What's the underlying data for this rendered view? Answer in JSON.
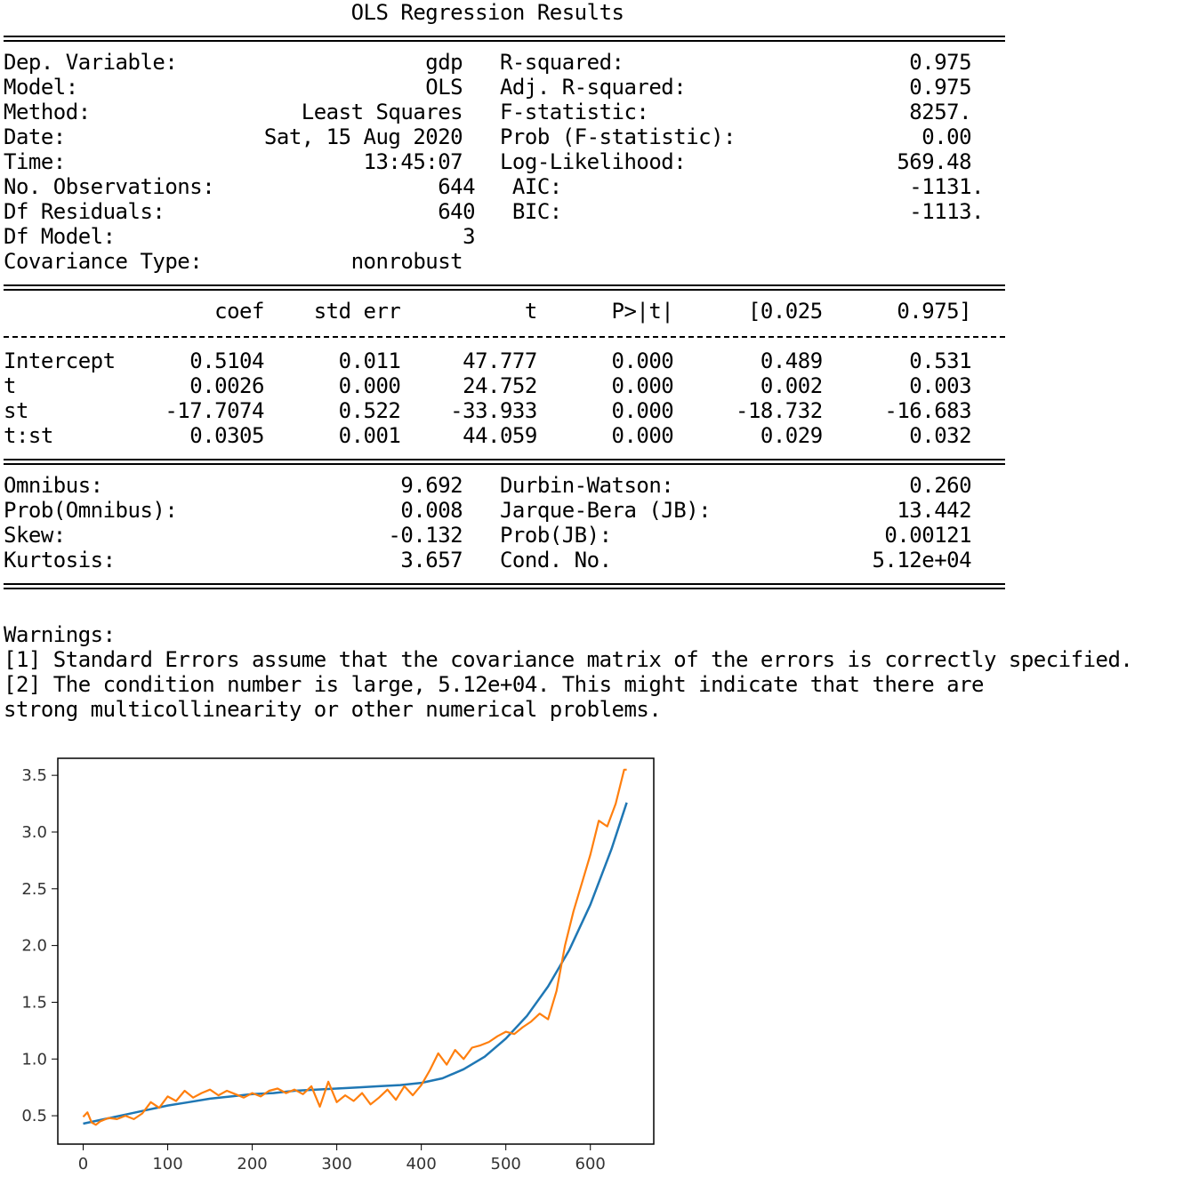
{
  "summary": {
    "title": "OLS Regression Results",
    "separator_eq": "==============================================================================",
    "separator_dash": "------------------------------------------------------------------------------",
    "header_rows": [
      "Dep. Variable:                    gdp   R-squared:                       0.975",
      "Model:                            OLS   Adj. R-squared:                  0.975",
      "Method:                 Least Squares   F-statistic:                     8257.",
      "Date:                Sat, 15 Aug 2020   Prob (F-statistic):               0.00",
      "Time:                        13:45:07   Log-Likelihood:                 569.48",
      "No. Observations:                  644   AIC:                            -1131.",
      "Df Residuals:                      640   BIC:                            -1113.",
      "Df Model:                            3                                         ",
      "Covariance Type:            nonrobust                                         "
    ],
    "coef_header": "                 coef    std err          t      P>|t|      [0.025      0.975]",
    "coef_rows": [
      "Intercept      0.5104      0.011     47.777      0.000       0.489       0.531",
      "t              0.0026      0.000     24.752      0.000       0.002       0.003",
      "st           -17.7074      0.522    -33.933      0.000     -18.732     -16.683",
      "t:st           0.0305      0.001     44.059      0.000       0.029       0.032"
    ],
    "diag_rows": [
      "Omnibus:                        9.692   Durbin-Watson:                   0.260",
      "Prob(Omnibus):                  0.008   Jarque-Bera (JB):               13.442",
      "Skew:                          -0.132   Prob(JB):                      0.00121",
      "Kurtosis:                       3.657   Cond. No.                     5.12e+04"
    ],
    "warnings_title": "Warnings:",
    "warnings": [
      "[1] Standard Errors assume that the covariance matrix of the errors is correctly specified.",
      "[2] The condition number is large, 5.12e+04. This might indicate that there are",
      "strong multicollinearity or other numerical problems."
    ]
  },
  "chart_data": {
    "type": "line",
    "title": "",
    "xlabel": "",
    "ylabel": "",
    "xlim": [
      -30,
      675
    ],
    "ylim": [
      0.25,
      3.65
    ],
    "x_ticks": [
      0,
      100,
      200,
      300,
      400,
      500,
      600
    ],
    "y_ticks": [
      0.5,
      1.0,
      1.5,
      2.0,
      2.5,
      3.0,
      3.5
    ],
    "x_tick_labels": [
      "0",
      "100",
      "200",
      "300",
      "400",
      "500",
      "600"
    ],
    "y_tick_labels": [
      "0.5",
      "1.0",
      "1.5",
      "2.0",
      "2.5",
      "3.0",
      "3.5"
    ],
    "grid": false,
    "series": [
      {
        "color": "#1f77b4",
        "x": [
          0,
          25,
          50,
          75,
          100,
          125,
          150,
          175,
          200,
          225,
          250,
          275,
          300,
          325,
          350,
          375,
          400,
          425,
          450,
          475,
          500,
          525,
          550,
          575,
          600,
          625,
          643
        ],
        "y": [
          0.43,
          0.47,
          0.51,
          0.55,
          0.59,
          0.62,
          0.65,
          0.67,
          0.69,
          0.7,
          0.72,
          0.73,
          0.74,
          0.75,
          0.76,
          0.77,
          0.79,
          0.83,
          0.91,
          1.02,
          1.18,
          1.38,
          1.64,
          1.96,
          2.36,
          2.85,
          3.26
        ]
      },
      {
        "color": "#ff7f0e",
        "x": [
          0,
          5,
          10,
          15,
          20,
          30,
          40,
          50,
          60,
          70,
          80,
          90,
          100,
          110,
          120,
          130,
          140,
          150,
          160,
          170,
          180,
          190,
          200,
          210,
          220,
          230,
          240,
          250,
          260,
          270,
          280,
          290,
          300,
          310,
          320,
          330,
          340,
          350,
          360,
          370,
          380,
          390,
          400,
          410,
          420,
          430,
          440,
          450,
          460,
          470,
          480,
          490,
          500,
          510,
          520,
          530,
          540,
          550,
          560,
          570,
          580,
          590,
          600,
          610,
          620,
          630,
          640,
          643
        ],
        "y": [
          0.49,
          0.53,
          0.44,
          0.42,
          0.45,
          0.48,
          0.47,
          0.5,
          0.47,
          0.52,
          0.62,
          0.57,
          0.67,
          0.63,
          0.72,
          0.66,
          0.7,
          0.73,
          0.68,
          0.72,
          0.69,
          0.66,
          0.7,
          0.67,
          0.72,
          0.74,
          0.7,
          0.73,
          0.69,
          0.76,
          0.58,
          0.8,
          0.62,
          0.68,
          0.63,
          0.7,
          0.6,
          0.66,
          0.73,
          0.64,
          0.76,
          0.68,
          0.77,
          0.9,
          1.05,
          0.95,
          1.08,
          1.0,
          1.1,
          1.12,
          1.15,
          1.2,
          1.24,
          1.22,
          1.28,
          1.33,
          1.4,
          1.35,
          1.6,
          2.0,
          2.3,
          2.55,
          2.8,
          3.1,
          3.05,
          3.25,
          3.55,
          3.55
        ]
      }
    ]
  }
}
